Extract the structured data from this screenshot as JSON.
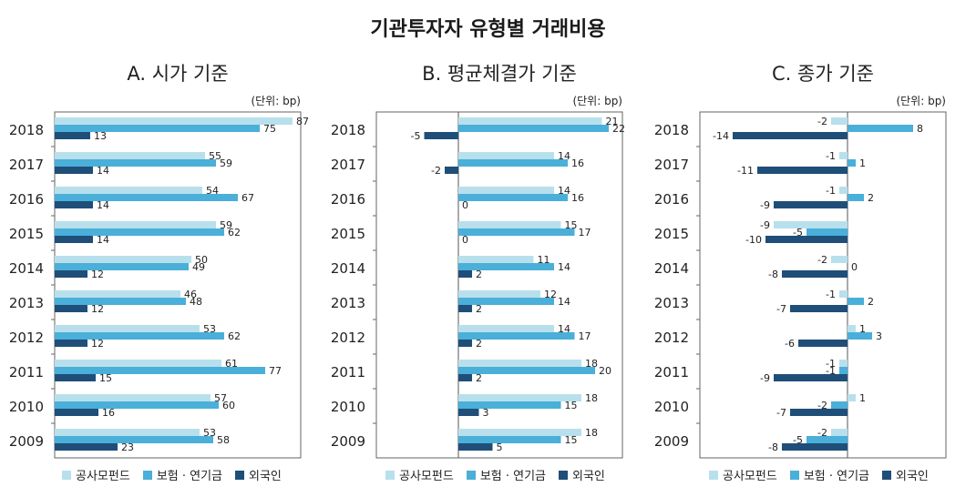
{
  "title": "기관투자자 유형별 거래비용",
  "legend": [
    "공사모펀드",
    "보험 · 연기금",
    "외국인"
  ],
  "colors": {
    "s0": "#b8e0ec",
    "s1": "#4aafd9",
    "s2": "#1f4e79"
  },
  "chart_data": [
    {
      "type": "bar",
      "orientation": "horizontal",
      "title": "A. 시가 기준",
      "unit_label": "(단위: bp)",
      "categories": [
        "2018",
        "2017",
        "2016",
        "2015",
        "2014",
        "2013",
        "2012",
        "2011",
        "2010",
        "2009"
      ],
      "xlim": [
        0,
        90
      ],
      "series": [
        {
          "name": "공사모펀드",
          "values": [
            87,
            55,
            54,
            59,
            50,
            46,
            53,
            61,
            57,
            53
          ]
        },
        {
          "name": "보험 · 연기금",
          "values": [
            75,
            59,
            67,
            62,
            49,
            48,
            62,
            77,
            60,
            58
          ]
        },
        {
          "name": "외국인",
          "values": [
            13,
            14,
            14,
            14,
            12,
            12,
            12,
            15,
            16,
            23
          ]
        }
      ]
    },
    {
      "type": "bar",
      "orientation": "horizontal",
      "title": "B. 평균체결가 기준",
      "unit_label": "(단위: bp)",
      "categories": [
        "2018",
        "2017",
        "2016",
        "2015",
        "2014",
        "2013",
        "2012",
        "2011",
        "2010",
        "2009"
      ],
      "xlim": [
        -12,
        24
      ],
      "series": [
        {
          "name": "공사모펀드",
          "values": [
            21,
            14,
            14,
            15,
            11,
            12,
            14,
            18,
            18,
            18
          ]
        },
        {
          "name": "보험 · 연기금",
          "values": [
            22,
            16,
            16,
            17,
            14,
            14,
            17,
            20,
            15,
            15
          ]
        },
        {
          "name": "외국인",
          "values": [
            -5,
            -2,
            0,
            0,
            2,
            2,
            2,
            2,
            3,
            5
          ]
        }
      ]
    },
    {
      "type": "bar",
      "orientation": "horizontal",
      "title": "C. 종가 기준",
      "unit_label": "(단위: bp)",
      "categories": [
        "2018",
        "2017",
        "2016",
        "2015",
        "2014",
        "2013",
        "2012",
        "2011",
        "2010",
        "2009"
      ],
      "xlim": [
        -18,
        12
      ],
      "series": [
        {
          "name": "공사모펀드",
          "values": [
            -2,
            -1,
            -1,
            -9,
            -2,
            -1,
            1,
            -1,
            1,
            -2
          ]
        },
        {
          "name": "보험 · 연기금",
          "values": [
            8,
            1,
            2,
            -5,
            0,
            2,
            3,
            -1,
            -2,
            -5
          ]
        },
        {
          "name": "외국인",
          "values": [
            -14,
            -11,
            -9,
            -10,
            -8,
            -7,
            -6,
            -9,
            -7,
            -8
          ]
        }
      ]
    }
  ]
}
